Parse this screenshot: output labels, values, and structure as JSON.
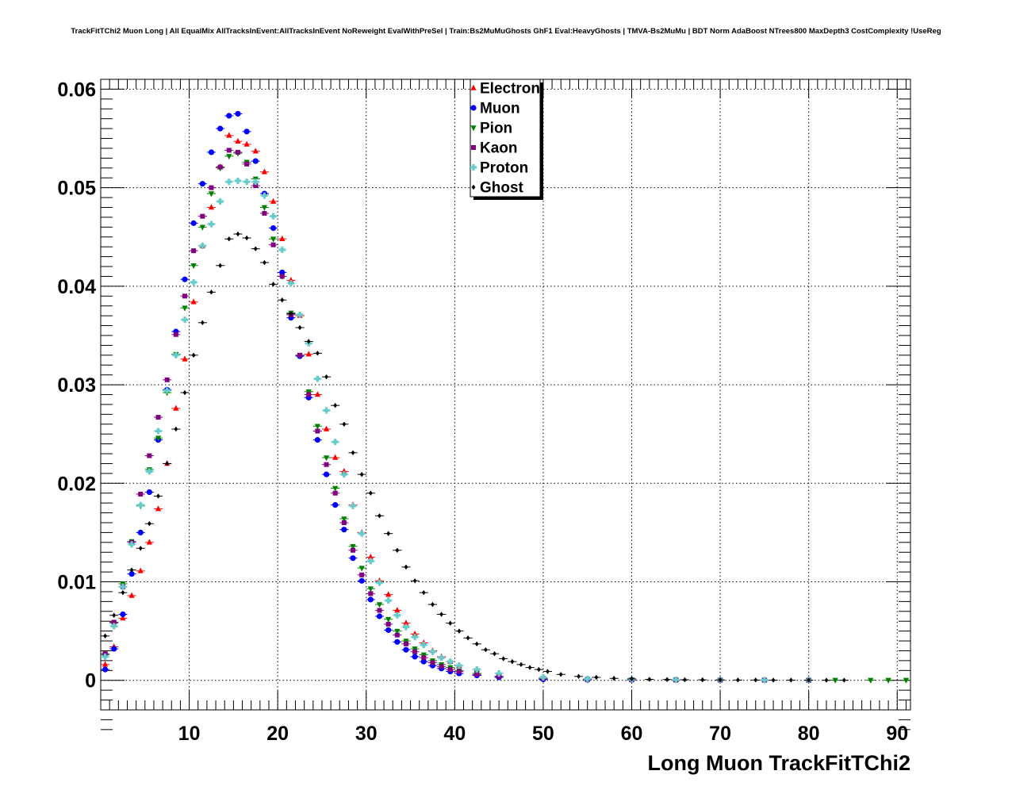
{
  "chart_data": {
    "type": "scatter",
    "title": "TrackFitTChi2 Muon Long | All EqualMix AllTracksInEvent:AllTracksInEvent NoReweight EvalWithPreSel | Train:Bs2MuMuGhosts GhF1 Eval:HeavyGhosts | TMVA-Bs2MuMu | BDT Norm AdaBoost NTrees800 MaxDepth3 CostComplexity !UseReg",
    "xlabel": "Long Muon TrackFitTChi2",
    "ylabel": "",
    "xlim": [
      0,
      91.5
    ],
    "ylim": [
      -0.003,
      0.061
    ],
    "xticks": [
      10,
      20,
      30,
      40,
      50,
      60,
      70,
      80,
      90
    ],
    "xtick_labels": [
      "10",
      "20",
      "30",
      "40",
      "50",
      "60",
      "70",
      "80",
      "90"
    ],
    "yticks": [
      0,
      0.01,
      0.02,
      0.03,
      0.04,
      0.05,
      0.06
    ],
    "ytick_labels": [
      "0",
      "0.01",
      "0.02",
      "0.03",
      "0.04",
      "0.05",
      "0.06"
    ],
    "grid": true,
    "legend_position": "top-center",
    "bin_width": 1,
    "series": [
      {
        "name": "Electron",
        "color": "#ff0000",
        "marker": "triangle-up",
        "x": [
          0.5,
          1.5,
          2.5,
          3.5,
          4.5,
          5.5,
          6.5,
          7.5,
          8.5,
          9.5,
          10.5,
          11.5,
          12.5,
          13.5,
          14.5,
          15.5,
          16.5,
          17.5,
          18.5,
          19.5,
          20.5,
          21.5,
          22.5,
          23.5,
          24.5,
          25.5,
          26.5,
          27.5,
          28.5,
          29.5,
          30.5,
          31.5,
          32.5,
          33.5,
          34.5,
          35.5,
          36.5,
          37.5,
          38.5,
          39.5,
          40.5,
          42.5,
          45,
          50,
          55,
          60,
          65,
          70,
          75,
          80
        ],
        "y": [
          0.0016,
          0.0034,
          0.0063,
          0.0086,
          0.0111,
          0.014,
          0.0174,
          0.022,
          0.0276,
          0.0326,
          0.0384,
          0.0441,
          0.048,
          0.0521,
          0.0553,
          0.0547,
          0.0544,
          0.0537,
          0.0516,
          0.0486,
          0.0448,
          0.0406,
          0.037,
          0.0331,
          0.029,
          0.0255,
          0.0226,
          0.0212,
          0.0178,
          0.015,
          0.0125,
          0.0101,
          0.0087,
          0.0071,
          0.0058,
          0.0047,
          0.0038,
          0.003,
          0.0024,
          0.0019,
          0.0015,
          0.0011,
          0.0007,
          0.0003,
          0.00015,
          0.0001,
          5e-05,
          3e-05,
          2e-05,
          1e-05
        ]
      },
      {
        "name": "Muon",
        "color": "#0000ff",
        "marker": "circle",
        "x": [
          0.5,
          1.5,
          2.5,
          3.5,
          4.5,
          5.5,
          6.5,
          7.5,
          8.5,
          9.5,
          10.5,
          11.5,
          12.5,
          13.5,
          14.5,
          15.5,
          16.5,
          17.5,
          18.5,
          19.5,
          20.5,
          21.5,
          22.5,
          23.5,
          24.5,
          25.5,
          26.5,
          27.5,
          28.5,
          29.5,
          30.5,
          31.5,
          32.5,
          33.5,
          34.5,
          35.5,
          36.5,
          37.5,
          38.5,
          39.5,
          40.5,
          42.5,
          45,
          50,
          55,
          60,
          65,
          70,
          75,
          80
        ],
        "y": [
          0.0011,
          0.0032,
          0.0067,
          0.0108,
          0.015,
          0.0191,
          0.0244,
          0.0295,
          0.0354,
          0.0407,
          0.0464,
          0.0504,
          0.0536,
          0.056,
          0.0573,
          0.0575,
          0.0557,
          0.0527,
          0.0494,
          0.0459,
          0.0414,
          0.0368,
          0.0329,
          0.0287,
          0.0244,
          0.0209,
          0.0178,
          0.0153,
          0.0124,
          0.0101,
          0.0082,
          0.0065,
          0.0051,
          0.0039,
          0.0031,
          0.0024,
          0.0019,
          0.0015,
          0.0012,
          0.0009,
          0.0007,
          0.0005,
          0.0003,
          0.0001,
          5e-05,
          3e-05,
          2e-05,
          1e-05,
          1e-05,
          1e-05
        ]
      },
      {
        "name": "Pion",
        "color": "#008000",
        "marker": "triangle-down",
        "x": [
          0.5,
          1.5,
          2.5,
          3.5,
          4.5,
          5.5,
          6.5,
          7.5,
          8.5,
          9.5,
          10.5,
          11.5,
          12.5,
          13.5,
          14.5,
          15.5,
          16.5,
          17.5,
          18.5,
          19.5,
          20.5,
          21.5,
          22.5,
          23.5,
          24.5,
          25.5,
          26.5,
          27.5,
          28.5,
          29.5,
          30.5,
          31.5,
          32.5,
          33.5,
          34.5,
          35.5,
          36.5,
          37.5,
          38.5,
          39.5,
          40.5,
          42.5,
          45,
          50,
          55,
          60,
          65,
          70,
          75,
          80,
          83,
          87,
          89,
          91
        ],
        "y": [
          0.0026,
          0.0058,
          0.0098,
          0.0141,
          0.0177,
          0.0214,
          0.0246,
          0.0292,
          0.0331,
          0.0378,
          0.0421,
          0.046,
          0.0494,
          0.052,
          0.0532,
          0.0535,
          0.0526,
          0.0509,
          0.048,
          0.0448,
          0.041,
          0.0373,
          0.033,
          0.0293,
          0.0258,
          0.0226,
          0.0195,
          0.0164,
          0.0136,
          0.0114,
          0.0093,
          0.0077,
          0.0062,
          0.005,
          0.004,
          0.0032,
          0.0026,
          0.002,
          0.0016,
          0.0013,
          0.001,
          0.0007,
          0.0004,
          0.0002,
          0.0001,
          7e-05,
          5e-05,
          3e-05,
          3e-05,
          2e-05,
          2e-05,
          2e-05,
          2e-05,
          2e-05
        ]
      },
      {
        "name": "Kaon",
        "color": "#800080",
        "marker": "square",
        "x": [
          0.5,
          1.5,
          2.5,
          3.5,
          4.5,
          5.5,
          6.5,
          7.5,
          8.5,
          9.5,
          10.5,
          11.5,
          12.5,
          13.5,
          14.5,
          15.5,
          16.5,
          17.5,
          18.5,
          19.5,
          20.5,
          21.5,
          22.5,
          23.5,
          24.5,
          25.5,
          26.5,
          27.5,
          28.5,
          29.5,
          30.5,
          31.5,
          32.5,
          33.5,
          34.5,
          35.5,
          36.5,
          37.5,
          38.5,
          39.5,
          40.5,
          42.5,
          45,
          50,
          55,
          60,
          65,
          70,
          75,
          80
        ],
        "y": [
          0.0027,
          0.0059,
          0.0095,
          0.014,
          0.0189,
          0.0228,
          0.0267,
          0.0305,
          0.0351,
          0.039,
          0.0436,
          0.0471,
          0.05,
          0.0521,
          0.0538,
          0.0536,
          0.0524,
          0.0502,
          0.0474,
          0.0442,
          0.041,
          0.0371,
          0.033,
          0.029,
          0.0253,
          0.0219,
          0.019,
          0.016,
          0.0132,
          0.0107,
          0.0088,
          0.0071,
          0.0057,
          0.0046,
          0.0037,
          0.0029,
          0.0023,
          0.0018,
          0.0014,
          0.0011,
          0.0009,
          0.0006,
          0.0004,
          0.0002,
          0.0001,
          5e-05,
          3e-05,
          2e-05,
          2e-05,
          1e-05
        ]
      },
      {
        "name": "Proton",
        "color": "#66cccc",
        "marker": "cross",
        "x": [
          0.5,
          1.5,
          2.5,
          3.5,
          4.5,
          5.5,
          6.5,
          7.5,
          8.5,
          9.5,
          10.5,
          11.5,
          12.5,
          13.5,
          14.5,
          15.5,
          16.5,
          17.5,
          18.5,
          19.5,
          20.5,
          21.5,
          22.5,
          23.5,
          24.5,
          25.5,
          26.5,
          27.5,
          28.5,
          29.5,
          30.5,
          31.5,
          32.5,
          33.5,
          34.5,
          35.5,
          36.5,
          37.5,
          38.5,
          39.5,
          40.5,
          42.5,
          45,
          50,
          55,
          60,
          65,
          70,
          75,
          80
        ],
        "y": [
          0.0024,
          0.0055,
          0.0095,
          0.0138,
          0.0178,
          0.0212,
          0.0253,
          0.0294,
          0.033,
          0.0366,
          0.0404,
          0.0441,
          0.0463,
          0.0486,
          0.0506,
          0.0507,
          0.0506,
          0.0506,
          0.0492,
          0.0471,
          0.0437,
          0.0403,
          0.0371,
          0.0342,
          0.0306,
          0.0274,
          0.0242,
          0.0209,
          0.0177,
          0.0149,
          0.0121,
          0.0099,
          0.0081,
          0.0066,
          0.0054,
          0.0044,
          0.0036,
          0.0029,
          0.0023,
          0.0019,
          0.0015,
          0.0011,
          0.0007,
          0.0003,
          0.00015,
          0.0001,
          6e-05,
          4e-05,
          3e-05,
          2e-05
        ]
      },
      {
        "name": "Ghost",
        "color": "#000000",
        "marker": "diamond",
        "x": [
          0.5,
          1.5,
          2.5,
          3.5,
          4.5,
          5.5,
          6.5,
          7.5,
          8.5,
          9.5,
          10.5,
          11.5,
          12.5,
          13.5,
          14.5,
          15.5,
          16.5,
          17.5,
          18.5,
          19.5,
          20.5,
          21.5,
          22.5,
          23.5,
          24.5,
          25.5,
          26.5,
          27.5,
          28.5,
          29.5,
          30.5,
          31.5,
          32.5,
          33.5,
          34.5,
          35.5,
          36.5,
          37.5,
          38.5,
          39.5,
          40.5,
          41.5,
          42.5,
          43.5,
          44.5,
          45.5,
          46.5,
          47.5,
          48.5,
          49.5,
          50.5,
          52,
          54,
          56,
          58,
          60,
          62,
          64,
          66,
          68,
          70,
          72,
          74,
          76,
          78,
          80,
          82,
          84
        ],
        "y": [
          0.0045,
          0.0066,
          0.0089,
          0.0112,
          0.0134,
          0.0159,
          0.0187,
          0.022,
          0.0255,
          0.0292,
          0.033,
          0.0363,
          0.0394,
          0.0421,
          0.0448,
          0.0453,
          0.0449,
          0.0438,
          0.0424,
          0.0402,
          0.0386,
          0.0372,
          0.0358,
          0.0344,
          0.0332,
          0.0308,
          0.0279,
          0.026,
          0.0231,
          0.0209,
          0.019,
          0.0167,
          0.0149,
          0.0132,
          0.0115,
          0.0101,
          0.0089,
          0.0077,
          0.0067,
          0.0058,
          0.005,
          0.0043,
          0.0037,
          0.0031,
          0.0027,
          0.0022,
          0.0019,
          0.0016,
          0.0013,
          0.0011,
          0.0009,
          0.0006,
          0.0004,
          0.0003,
          0.0002,
          0.00015,
          0.0001,
          8e-05,
          6e-05,
          5e-05,
          4e-05,
          3e-05,
          3e-05,
          2e-05,
          2e-05,
          2e-05,
          1e-05,
          1e-05
        ]
      }
    ]
  }
}
